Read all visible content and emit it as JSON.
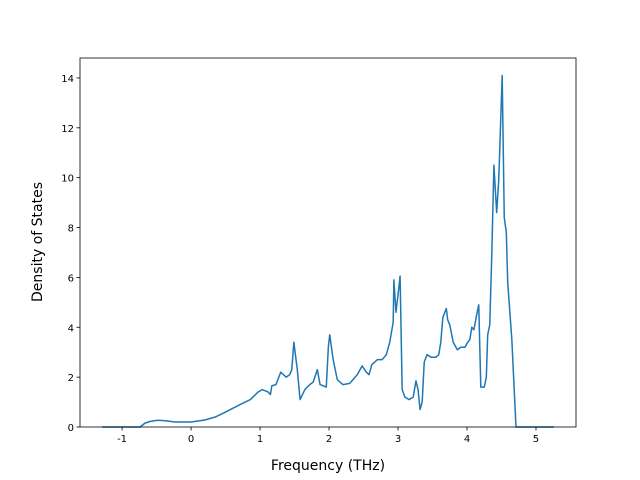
{
  "chart_data": {
    "type": "line",
    "x_label": "Frequency (THz)",
    "y_label": "Density of States",
    "xlim": [
      -1.61,
      5.58
    ],
    "ylim": [
      0,
      14.8
    ],
    "xticks": [
      -1,
      0,
      1,
      2,
      3,
      4,
      5
    ],
    "yticks": [
      0,
      2,
      4,
      6,
      8,
      10,
      12,
      14
    ],
    "series": [
      {
        "color": "#1f77b4",
        "x": [
          -1.29,
          -0.74,
          -0.67,
          -0.6,
          -0.48,
          -0.38,
          -0.23,
          0,
          0.2,
          0.35,
          0.5,
          0.71,
          0.86,
          0.97,
          1.03,
          1.12,
          1.15,
          1.17,
          1.23,
          1.3,
          1.38,
          1.43,
          1.46,
          1.49,
          1.54,
          1.58,
          1.65,
          1.72,
          1.77,
          1.83,
          1.87,
          1.96,
          1.99,
          2.01,
          2.06,
          2.12,
          2.2,
          2.3,
          2.41,
          2.48,
          2.54,
          2.58,
          2.62,
          2.7,
          2.77,
          2.83,
          2.88,
          2.93,
          2.94,
          2.97,
          3.0,
          3.03,
          3.06,
          3.1,
          3.16,
          3.22,
          3.26,
          3.29,
          3.32,
          3.35,
          3.38,
          3.42,
          3.48,
          3.55,
          3.59,
          3.62,
          3.65,
          3.7,
          3.72,
          3.75,
          3.8,
          3.86,
          3.91,
          3.97,
          4.01,
          4.04,
          4.07,
          4.1,
          4.14,
          4.17,
          4.2,
          4.25,
          4.28,
          4.3,
          4.33,
          4.36,
          4.39,
          4.43,
          4.46,
          4.51,
          4.54,
          4.57,
          4.59,
          4.65,
          4.71,
          5.26
        ],
        "values": [
          0,
          0,
          0.15,
          0.22,
          0.27,
          0.25,
          0.2,
          0.2,
          0.28,
          0.4,
          0.6,
          0.9,
          1.1,
          1.4,
          1.5,
          1.4,
          1.3,
          1.65,
          1.7,
          2.2,
          2.0,
          2.1,
          2.3,
          3.4,
          2.3,
          1.1,
          1.5,
          1.7,
          1.8,
          2.3,
          1.7,
          1.6,
          3.2,
          3.7,
          2.7,
          1.9,
          1.7,
          1.75,
          2.1,
          2.45,
          2.2,
          2.1,
          2.5,
          2.7,
          2.7,
          2.9,
          3.4,
          4.2,
          5.9,
          4.6,
          5.3,
          6.05,
          1.5,
          1.2,
          1.1,
          1.2,
          1.85,
          1.5,
          0.7,
          1.0,
          2.6,
          2.9,
          2.8,
          2.8,
          2.9,
          3.4,
          4.4,
          4.75,
          4.3,
          4.1,
          3.4,
          3.1,
          3.2,
          3.2,
          3.4,
          3.5,
          4.0,
          3.9,
          4.5,
          4.9,
          1.6,
          1.6,
          2.0,
          3.7,
          4.1,
          7.0,
          10.5,
          8.6,
          9.9,
          14.1,
          8.4,
          7.8,
          5.8,
          3.5,
          0,
          0
        ]
      }
    ]
  }
}
